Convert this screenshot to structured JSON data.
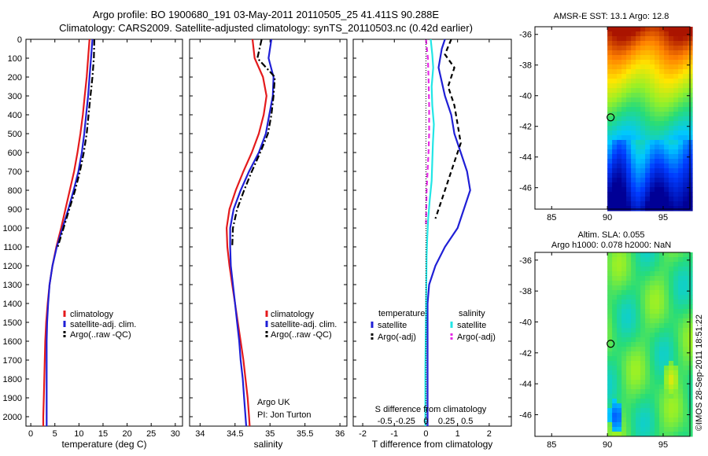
{
  "title_line1": "Argo profile: BO 1900680_191 03-May-2011 20110505_25 41.411S 90.288E",
  "title_line2": "Climatology: CARS2009. Satellite-adjusted climatology: synTS_20110503.nc (0.42d earlier)",
  "colors": {
    "climatology": "#e41a1c",
    "satellite": "#1f1fd6",
    "argo": "#000000",
    "sat_salinity": "#22e6e6",
    "argo_salinity": "#e628e6"
  },
  "chart_data": [
    {
      "type": "line",
      "name": "temperature-profile",
      "xlabel": "temperature (deg C)",
      "xlim": [
        -1,
        31.5
      ],
      "xticks": [
        0,
        5,
        10,
        15,
        20,
        25,
        30
      ],
      "ylim": [
        2050,
        0
      ],
      "yticks": [
        0,
        100,
        200,
        300,
        400,
        500,
        600,
        700,
        800,
        900,
        1000,
        1100,
        1200,
        1300,
        1400,
        1500,
        1600,
        1700,
        1800,
        1900,
        2000
      ],
      "legend": [
        "climatology",
        "satellite-adj. clim.",
        "Argo(..raw -QC)"
      ],
      "series": [
        {
          "name": "climatology",
          "style": "solid",
          "color": "#e41a1c",
          "x": [
            12.2,
            11.9,
            11.6,
            11.2,
            10.8,
            10.3,
            9.7,
            9.0,
            8.1,
            7.2,
            6.3,
            5.3,
            4.5,
            3.9,
            3.5,
            3.2,
            3.0,
            2.9,
            2.8,
            2.7,
            2.6,
            2.6
          ],
          "y": [
            0,
            100,
            200,
            300,
            400,
            500,
            600,
            700,
            800,
            900,
            1000,
            1100,
            1200,
            1300,
            1400,
            1500,
            1600,
            1700,
            1800,
            1900,
            2000,
            2050
          ]
        },
        {
          "name": "satellite-adj. clim.",
          "style": "solid",
          "color": "#1f1fd6",
          "x": [
            12.8,
            12.5,
            12.2,
            11.9,
            11.5,
            11.1,
            10.6,
            9.9,
            8.9,
            7.8,
            6.6,
            5.4,
            4.5,
            3.9,
            3.6,
            3.4,
            3.3,
            3.3,
            3.3,
            3.3,
            3.3,
            3.3
          ],
          "y": [
            0,
            100,
            200,
            300,
            400,
            500,
            600,
            700,
            800,
            900,
            1000,
            1100,
            1200,
            1300,
            1400,
            1500,
            1600,
            1700,
            1800,
            1900,
            2000,
            2050
          ]
        },
        {
          "name": "Argo(..raw -QC)",
          "style": "dashdot",
          "color": "#000000",
          "x": [
            13.2,
            13.1,
            12.8,
            12.4,
            12.0,
            11.6,
            11.0,
            10.2,
            9.2,
            8.0,
            6.8,
            5.6
          ],
          "y": [
            0,
            100,
            200,
            300,
            400,
            500,
            600,
            700,
            800,
            900,
            1000,
            1100
          ]
        }
      ]
    },
    {
      "type": "line",
      "name": "salinity-profile",
      "xlabel": "salinity",
      "xlim": [
        33.85,
        36.1
      ],
      "xticks": [
        34,
        34.5,
        35,
        35.5,
        36
      ],
      "xticklabels": [
        "34",
        "34.5",
        "35",
        "35.5",
        "36"
      ],
      "ylim": [
        2050,
        0
      ],
      "legend": [
        "climatology",
        "satellite-adj. clim.",
        "Argo(..raw -QC)"
      ],
      "annotation": [
        "Argo UK",
        "PI: Jon Turton"
      ],
      "series": [
        {
          "name": "climatology",
          "style": "solid",
          "color": "#e41a1c",
          "x": [
            34.75,
            34.78,
            34.9,
            34.95,
            34.91,
            34.84,
            34.74,
            34.62,
            34.51,
            34.42,
            34.38,
            34.39,
            34.42,
            34.46,
            34.5,
            34.54,
            34.58,
            34.62,
            34.65,
            34.68,
            34.7,
            34.71
          ],
          "y": [
            0,
            100,
            200,
            300,
            400,
            500,
            600,
            700,
            800,
            900,
            1000,
            1100,
            1200,
            1300,
            1400,
            1500,
            1600,
            1700,
            1800,
            1900,
            2000,
            2050
          ]
        },
        {
          "name": "satellite-adj. clim.",
          "style": "solid",
          "color": "#1f1fd6",
          "x": [
            35.02,
            34.98,
            35.05,
            35.04,
            34.99,
            34.94,
            34.84,
            34.7,
            34.58,
            34.48,
            34.43,
            34.43,
            34.44,
            34.47,
            34.5,
            34.53,
            34.56,
            34.58,
            34.61,
            34.63,
            34.65,
            34.66
          ],
          "y": [
            0,
            100,
            200,
            300,
            400,
            500,
            600,
            700,
            800,
            900,
            1000,
            1100,
            1200,
            1300,
            1400,
            1500,
            1600,
            1700,
            1800,
            1900,
            2000,
            2050
          ]
        },
        {
          "name": "Argo(..raw -QC)",
          "style": "dashdot",
          "color": "#000000",
          "x": [
            34.88,
            34.82,
            35.07,
            35.05,
            35.02,
            34.97,
            34.86,
            34.74,
            34.63,
            34.53,
            34.47,
            34.46
          ],
          "y": [
            0,
            100,
            200,
            300,
            400,
            500,
            600,
            700,
            800,
            900,
            1000,
            1100
          ]
        }
      ]
    },
    {
      "type": "line",
      "name": "difference-profile",
      "xlabel": "T difference from climatology",
      "xlabel_top": "S difference from climatology",
      "xlim": [
        -2.3,
        2.7
      ],
      "xticks": [
        -2,
        -1,
        0,
        1,
        2
      ],
      "xticklabels": [
        "-2",
        "-1",
        "0",
        "1",
        "2"
      ],
      "sticks": [
        -0.5,
        -0.25,
        0,
        0.25,
        0.5
      ],
      "sticklabels": [
        "-0.5",
        "-0.25",
        "0",
        "0.25",
        "0.5"
      ],
      "ylim": [
        2050,
        0
      ],
      "legend_titles": [
        "temperature",
        "salinity"
      ],
      "legend": [
        "satellite",
        "Argo(-adj)",
        "satellite",
        "Argo(-adj)"
      ],
      "series": [
        {
          "name": "temperature satellite",
          "style": "solid",
          "color": "#1f1fd6",
          "x": [
            0.6,
            0.5,
            0.4,
            0.6,
            0.8,
            0.9,
            1.1,
            1.3,
            1.4,
            1.2,
            1.0,
            0.6,
            0.3,
            0.1,
            0.05,
            0.05,
            0.05,
            0.05,
            0.05,
            0.05,
            0.05
          ],
          "y": [
            0,
            50,
            150,
            300,
            400,
            500,
            600,
            700,
            800,
            900,
            1000,
            1100,
            1200,
            1300,
            1400,
            1500,
            1600,
            1700,
            1800,
            1900,
            2050
          ]
        },
        {
          "name": "temperature Argo(-adj)",
          "style": "dashed",
          "color": "#000000",
          "x": [
            0.8,
            0.6,
            0.9,
            0.7,
            0.9,
            1.0,
            1.1,
            0.9,
            0.7,
            0.5,
            0.3
          ],
          "y": [
            0,
            80,
            150,
            250,
            350,
            450,
            550,
            650,
            750,
            850,
            950
          ]
        },
        {
          "name": "salinity satellite",
          "style": "solid",
          "color": "#22e6e6",
          "x": [
            0.15,
            0.2,
            0.23,
            0.18,
            0.2,
            0.25,
            0.22,
            0.2,
            0.18,
            0.12,
            0.07,
            0.04,
            0.02,
            0.01,
            0.0,
            -0.01,
            -0.02,
            -0.02,
            -0.02,
            -0.02
          ],
          "y": [
            0,
            80,
            150,
            250,
            350,
            450,
            550,
            650,
            750,
            850,
            950,
            1050,
            1150,
            1300,
            1450,
            1600,
            1750,
            1850,
            1950,
            2050
          ]
        },
        {
          "name": "salinity Argo(-adj)",
          "style": "dashed",
          "color": "#e628e6",
          "x": [
            0.0,
            0.06,
            0.08,
            0.1,
            0.1,
            0.08,
            0.05,
            0.02,
            0.0
          ],
          "y": [
            0,
            100,
            200,
            350,
            500,
            600,
            700,
            800,
            980
          ]
        }
      ]
    },
    {
      "type": "heatmap",
      "name": "sst-map",
      "title": "AMSR-E SST: 13.1 Argo: 12.8",
      "xticks": [
        85,
        90,
        95
      ],
      "yticks": [
        -36,
        -38,
        -40,
        -42,
        -44,
        -46
      ],
      "xlim": [
        83.5,
        97.4
      ],
      "ylim": [
        -47.4,
        -35.5
      ],
      "data_xrange": [
        90,
        97.4
      ],
      "marker": {
        "lon": 90.29,
        "lat": -41.41
      }
    },
    {
      "type": "heatmap",
      "name": "sla-map",
      "title_line1": "Altim. SLA: 0.055",
      "title_line2": "Argo h1000: 0.078 h2000: NaN",
      "xticks": [
        85,
        90,
        95
      ],
      "yticks": [
        -36,
        -38,
        -40,
        -42,
        -44,
        -46
      ],
      "xlim": [
        83.5,
        97.4
      ],
      "ylim": [
        -47.4,
        -35.5
      ],
      "data_xrange": [
        90,
        97.4
      ],
      "marker": {
        "lon": 90.29,
        "lat": -41.41
      }
    }
  ],
  "credit": "©IMOS 28-Sep-2011 18:51:22"
}
